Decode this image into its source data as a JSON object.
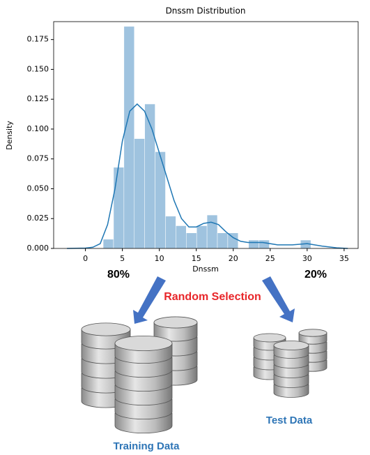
{
  "chart_data": {
    "type": "histogram",
    "title": "Dnssm Distribution",
    "x_label": "Dnssm",
    "y_label": "Density",
    "bins": [
      2.4,
      3.805,
      5.21,
      6.615,
      8.02,
      9.425,
      10.83,
      12.235,
      13.64,
      15.045,
      16.45,
      17.855,
      19.26,
      20.665,
      22.07,
      23.475,
      24.88,
      26.285,
      27.69,
      29.095,
      30.5
    ],
    "values": [
      0.0077,
      0.068,
      0.186,
      0.092,
      0.121,
      0.081,
      0.027,
      0.019,
      0.013,
      0.019,
      0.028,
      0.013,
      0.013,
      0,
      0.007,
      0.007,
      0,
      0,
      0,
      0.007
    ],
    "color": "#9fc3df",
    "kde": {
      "color": "#1f77b4",
      "x": [
        -2.5,
        0,
        1,
        2,
        3,
        4,
        5,
        6,
        7,
        8,
        9,
        10,
        11,
        12,
        13,
        14,
        15,
        16,
        17,
        18,
        19,
        20,
        21,
        22,
        24,
        26,
        28,
        30,
        32,
        34,
        35.5
      ],
      "y": [
        0,
        0.0003,
        0.001,
        0.004,
        0.02,
        0.05,
        0.09,
        0.115,
        0.121,
        0.115,
        0.1,
        0.08,
        0.06,
        0.04,
        0.025,
        0.018,
        0.018,
        0.021,
        0.022,
        0.02,
        0.014,
        0.009,
        0.006,
        0.005,
        0.005,
        0.003,
        0.003,
        0.004,
        0.002,
        0.0005,
        0
      ]
    },
    "xlim": [
      -4.3,
      36.9
    ],
    "ylim": [
      0,
      0.19
    ],
    "xticks": [
      0,
      5,
      10,
      15,
      20,
      25,
      30,
      35
    ],
    "yticks": [
      {
        "value": 0,
        "label": "0.000"
      },
      {
        "value": 0.025,
        "label": "0.025"
      },
      {
        "value": 0.05,
        "label": "0.050"
      },
      {
        "value": 0.075,
        "label": "0.075"
      },
      {
        "value": 0.1,
        "label": "0.100"
      },
      {
        "value": 0.125,
        "label": "0.125"
      },
      {
        "value": 0.15,
        "label": "0.150"
      },
      {
        "value": 0.175,
        "label": "0.175"
      }
    ]
  },
  "diagram": {
    "train_share": "80%",
    "method": "Random Selection",
    "test_share": "20%",
    "train_label": "Training Data",
    "test_label": "Test Data"
  }
}
